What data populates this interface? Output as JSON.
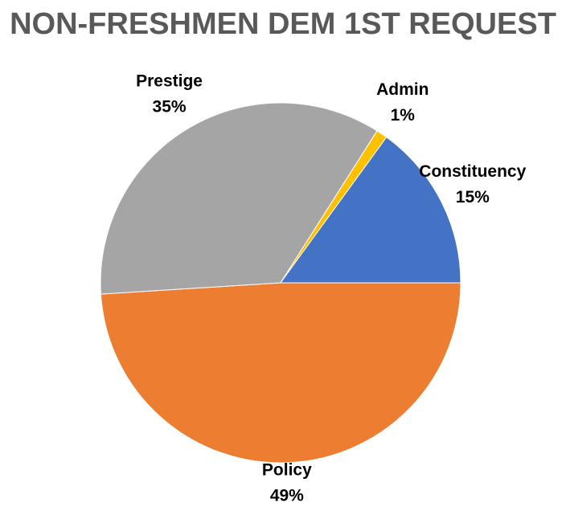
{
  "chart_data": {
    "type": "pie",
    "title": "NON-FRESHMEN DEM 1ST REQUEST",
    "categories": [
      "Policy",
      "Prestige",
      "Admin",
      "Constituency"
    ],
    "values": [
      49,
      35,
      1,
      15
    ],
    "value_labels": [
      "49%",
      "35%",
      "1%",
      "15%"
    ],
    "colors": [
      "#ED7D31",
      "#A5A5A5",
      "#FFC000",
      "#4472C4"
    ]
  }
}
